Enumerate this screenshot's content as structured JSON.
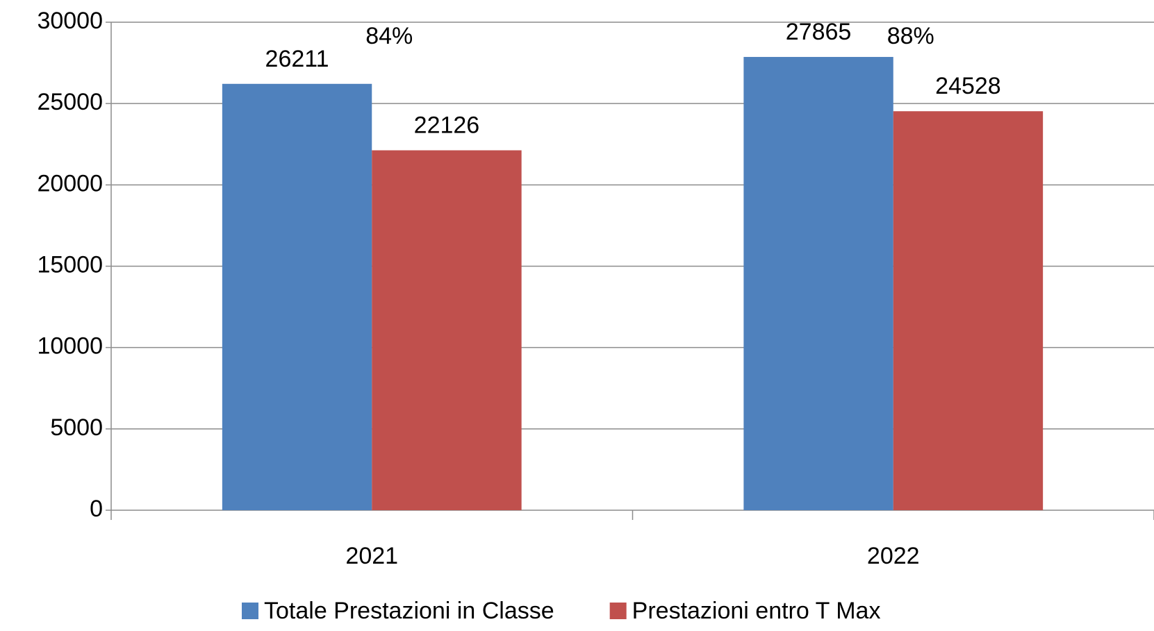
{
  "chart_data": {
    "type": "bar",
    "categories": [
      "2021",
      "2022"
    ],
    "series": [
      {
        "name": "Totale Prestazioni in Classe",
        "color": "#4f81bd",
        "values": [
          26211,
          27865
        ]
      },
      {
        "name": "Prestazioni entro T Max",
        "color": "#c0504d",
        "values": [
          22126,
          24528
        ]
      }
    ],
    "annotations": [
      "84%",
      "88%"
    ],
    "ylim": [
      0,
      30000
    ],
    "yticks": [
      0,
      5000,
      10000,
      15000,
      20000,
      25000,
      30000
    ],
    "grid": true,
    "legend": "bottom",
    "data_labels": true
  }
}
